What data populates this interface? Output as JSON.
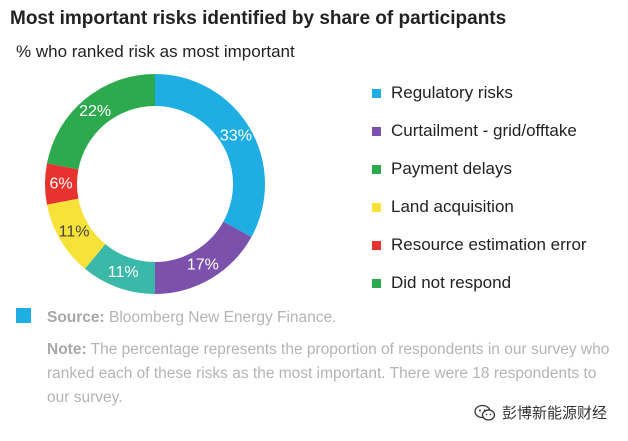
{
  "title": "Most important risks identified by share of participants",
  "subtitle": "% who ranked risk as most important",
  "chart_data": {
    "type": "pie",
    "variant": "donut",
    "title": "Most important risks identified by share of participants",
    "subtitle": "% who ranked risk as most important",
    "legend_position": "right",
    "slices": [
      {
        "label": "Regulatory risks",
        "value": 33,
        "value_label": "33%",
        "color": "#1faee3"
      },
      {
        "label": "Curtailment - grid/offtake",
        "value": 17,
        "value_label": "17%",
        "color": "#7b51ac"
      },
      {
        "label": "Payment delays",
        "value": 11,
        "value_label": "11%",
        "color": "#3ab9a8"
      },
      {
        "label": "Land acquisition",
        "value": 11,
        "value_label": "11%",
        "color": "#f7e23a"
      },
      {
        "label": "Resource estimation error",
        "value": 6,
        "value_label": "6%",
        "color": "#e7322d"
      },
      {
        "label": "Did not respond",
        "value": 22,
        "value_label": "22%",
        "color": "#2eaa4e"
      }
    ],
    "legend_colors": [
      "#1faee3",
      "#7b51ac",
      "#2eaa4e",
      "#f7e23a",
      "#e7322d",
      "#2eaa4e"
    ]
  },
  "footer": {
    "accent_color": "#1faee3",
    "source_key": "Source:",
    "source_text": " Bloomberg New Energy Finance.",
    "note_key": "Note:",
    "note_text": " The percentage represents the proportion of respondents in our survey who ranked each of these risks as the most important. There were 18 respondents to our survey."
  },
  "watermark": {
    "text": "彭博新能源财经",
    "icon": "wechat-icon"
  }
}
